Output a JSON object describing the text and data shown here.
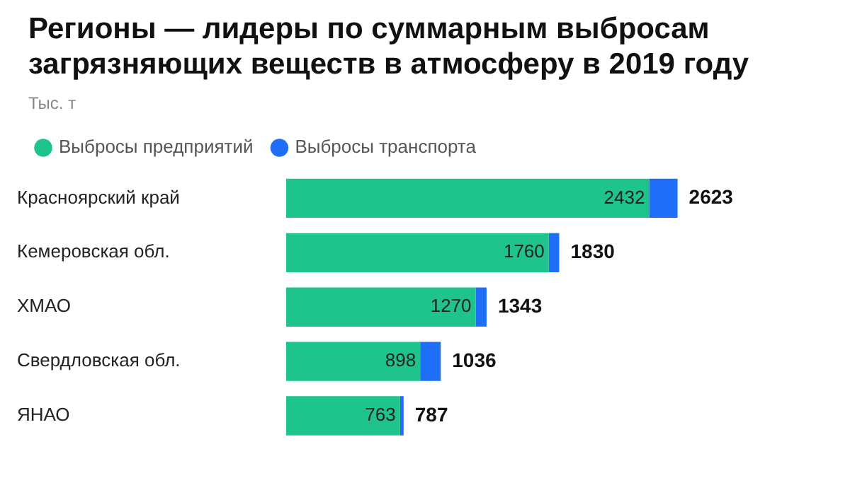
{
  "chart_data": {
    "type": "bar",
    "orientation": "horizontal",
    "stacked": true,
    "title": "Регионы — лидеры по суммарным выбросам загрязняющих веществ в атмосферу в 2019 году",
    "subtitle": "Тыс. т",
    "categories": [
      "Красноярский край",
      "Кемеровская обл.",
      "ХМАО",
      "Свердловская обл.",
      "ЯНАО"
    ],
    "series": [
      {
        "name": "Выбросы предприятий",
        "color": "#1fc38e",
        "values": [
          2432,
          1760,
          1270,
          898,
          763
        ],
        "value_labels": [
          "2432",
          "1760",
          "1270",
          "898",
          "763"
        ]
      },
      {
        "name": "Выбросы транспорта",
        "color": "#1e6ef7",
        "values": [
          191,
          70,
          73,
          138,
          24
        ]
      }
    ],
    "totals": [
      "2623",
      "1830",
      "1343",
      "1036",
      "787"
    ],
    "legend": "top left",
    "grid": false,
    "tick_labels": "y"
  }
}
